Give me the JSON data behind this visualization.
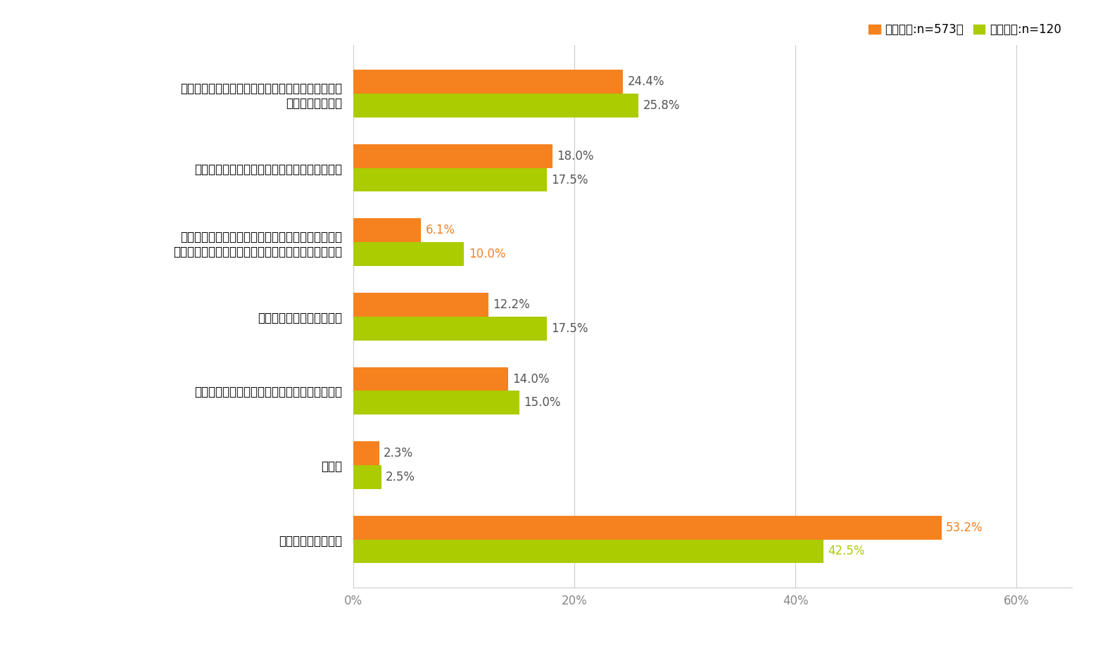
{
  "categories": [
    "あなたの要望を聞いたり、問題を解決するために相\n談にのってくれた",
    "あなたに事実確認のためのヒアリングを行った",
    "相談したことを理由としてあなたに不利益な取扱い\n（解雇・降格・減給・不利益な配置転換など）をした",
    "行為者に事実確認を行った",
    "あなたの上司、同僚や部下に事実確認を行った",
    "その他",
    "特に何もしなかった"
  ],
  "powaha_values": [
    24.4,
    18.0,
    6.1,
    12.2,
    14.0,
    2.3,
    53.2
  ],
  "sekuha_values": [
    25.8,
    17.5,
    10.0,
    17.5,
    15.0,
    2.5,
    42.5
  ],
  "powaha_color": "#F5821F",
  "sekuha_color": "#AACC00",
  "powaha_label": "パワハラ:n=573、",
  "sekuha_label": "セクハラ:n=120",
  "xlim": [
    0,
    65
  ],
  "xticks": [
    0,
    20,
    40,
    60
  ],
  "xticklabels": [
    "0%",
    "20%",
    "40%",
    "60%"
  ],
  "bar_height": 0.32,
  "label_colors_powaha": [
    "#555555",
    "#555555",
    "#F5821F",
    "#555555",
    "#555555",
    "#555555",
    "#F5821F"
  ],
  "label_colors_sekuha": [
    "#555555",
    "#555555",
    "#F5821F",
    "#555555",
    "#555555",
    "#555555",
    "#AACC00"
  ],
  "background_color": "#ffffff",
  "fontsize": 12,
  "value_fontsize": 12
}
